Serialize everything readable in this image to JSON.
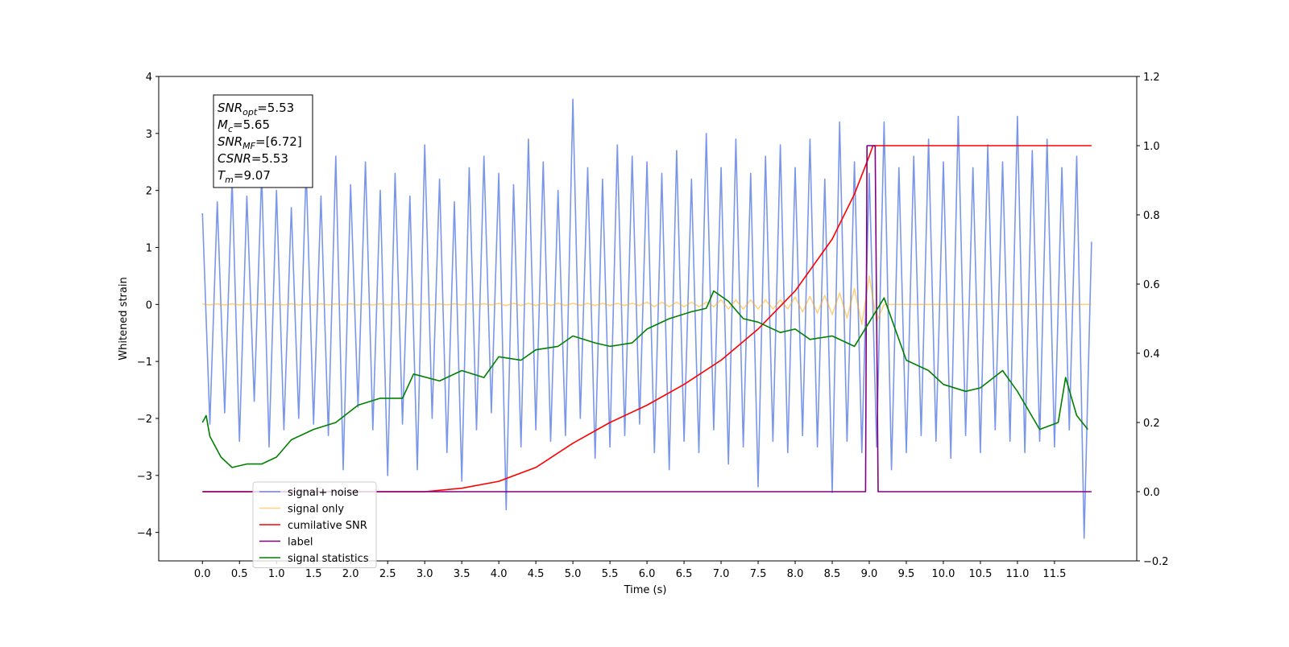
{
  "chart_data": {
    "type": "line",
    "xlabel": "Time (s)",
    "ylabel": "Whitened strain",
    "xlim": [
      -0.59,
      12.61
    ],
    "ylim": [
      -4.5,
      4
    ],
    "y2lim": [
      -0.2,
      1.2
    ],
    "xticks": [
      {
        "value": 0,
        "label": "0.0"
      },
      {
        "value": 0.5,
        "label": "0.5"
      },
      {
        "value": 1,
        "label": "1.0"
      },
      {
        "value": 1.5,
        "label": "1.5"
      },
      {
        "value": 2,
        "label": "2.0"
      },
      {
        "value": 2.5,
        "label": "2.5"
      },
      {
        "value": 3,
        "label": "3.0"
      },
      {
        "value": 3.5,
        "label": "3.5"
      },
      {
        "value": 4,
        "label": "4.0"
      },
      {
        "value": 4.5,
        "label": "4.5"
      },
      {
        "value": 5,
        "label": "5.0"
      },
      {
        "value": 5.5,
        "label": "5.5"
      },
      {
        "value": 6,
        "label": "6.0"
      },
      {
        "value": 6.5,
        "label": "6.5"
      },
      {
        "value": 7,
        "label": "7.0"
      },
      {
        "value": 7.5,
        "label": "7.5"
      },
      {
        "value": 8,
        "label": "8.0"
      },
      {
        "value": 8.5,
        "label": "8.5"
      },
      {
        "value": 9,
        "label": "9.0"
      },
      {
        "value": 9.5,
        "label": "9.5"
      },
      {
        "value": 10,
        "label": "10.0"
      },
      {
        "value": 10.5,
        "label": "10.5"
      },
      {
        "value": 11,
        "label": "11.0"
      },
      {
        "value": 11.5,
        "label": "11.5"
      }
    ],
    "yticks": [
      {
        "value": -4,
        "label": "−4"
      },
      {
        "value": -3,
        "label": "−3"
      },
      {
        "value": -2,
        "label": "−2"
      },
      {
        "value": -1,
        "label": "−1"
      },
      0,
      1,
      2,
      3,
      4
    ],
    "y2ticks": [
      {
        "value": -0.2,
        "label": "−0.2"
      },
      {
        "value": 0,
        "label": "0.0"
      },
      {
        "value": 0.2,
        "label": "0.2"
      },
      {
        "value": 0.4,
        "label": "0.4"
      },
      {
        "value": 0.6,
        "label": "0.6"
      },
      {
        "value": 0.8,
        "label": "0.8"
      },
      {
        "value": 1,
        "label": "1.0"
      },
      {
        "value": 1.2,
        "label": "1.2"
      }
    ],
    "annotation": [
      {
        "main": "SNR",
        "sub": "opt",
        "rest": "=5.53"
      },
      {
        "main": "M",
        "sub": "c",
        "rest": "=5.65"
      },
      {
        "main": "SNR",
        "sub": "MF",
        "rest": "=[6.72]"
      },
      {
        "main": "CSNR",
        "rest": "=5.53"
      },
      {
        "main": "T",
        "sub": "m",
        "rest": "=9.07"
      }
    ],
    "legend": "lower left",
    "x": [
      0.0,
      0.1,
      0.2,
      0.3,
      0.4,
      0.5,
      0.6,
      0.7,
      0.8,
      0.9,
      1.0,
      1.1,
      1.2,
      1.3,
      1.4,
      1.5,
      1.6,
      1.7,
      1.8,
      1.9,
      2.0,
      2.1,
      2.2,
      2.3,
      2.4,
      2.5,
      2.6,
      2.7,
      2.8,
      2.9,
      3.0,
      3.1,
      3.2,
      3.3,
      3.4,
      3.5,
      3.6,
      3.7,
      3.8,
      3.9,
      4.0,
      4.1,
      4.2,
      4.3,
      4.4,
      4.5,
      4.6,
      4.7,
      4.8,
      4.9,
      5.0,
      5.1,
      5.2,
      5.3,
      5.4,
      5.5,
      5.6,
      5.7,
      5.8,
      5.9,
      6.0,
      6.1,
      6.2,
      6.3,
      6.4,
      6.5,
      6.6,
      6.7,
      6.8,
      6.9,
      7.0,
      7.1,
      7.2,
      7.3,
      7.4,
      7.5,
      7.6,
      7.7,
      7.8,
      7.9,
      8.0,
      8.1,
      8.2,
      8.3,
      8.4,
      8.5,
      8.6,
      8.7,
      8.8,
      8.9,
      9.0,
      9.1,
      9.2,
      9.3,
      9.4,
      9.5,
      9.6,
      9.7,
      9.8,
      9.9,
      10.0,
      10.1,
      10.2,
      10.3,
      10.4,
      10.5,
      10.6,
      10.7,
      10.8,
      10.9,
      11.0,
      11.1,
      11.2,
      11.3,
      11.4,
      11.5,
      11.6,
      11.7,
      11.8,
      11.9,
      12.0
    ],
    "series": [
      {
        "name": "signal+ noise",
        "color": "#4169e1",
        "alpha": 0.7,
        "axis": "y",
        "values": [
          1.6,
          -2.1,
          1.8,
          -1.9,
          2.2,
          -2.4,
          1.9,
          -1.7,
          2.3,
          -2.5,
          2.0,
          -2.2,
          1.7,
          -2.0,
          2.4,
          -2.1,
          1.9,
          -2.3,
          2.6,
          -2.9,
          2.1,
          -1.8,
          2.5,
          -2.2,
          2.0,
          -3.0,
          2.3,
          -2.1,
          1.9,
          -2.9,
          2.8,
          -2.0,
          2.2,
          -2.6,
          1.8,
          -3.1,
          2.4,
          -2.2,
          2.6,
          -1.9,
          2.3,
          -3.6,
          2.1,
          -2.5,
          2.9,
          -2.2,
          2.5,
          -2.4,
          2.0,
          -2.3,
          3.6,
          -2.0,
          2.4,
          -2.7,
          2.2,
          -2.5,
          2.8,
          -2.3,
          2.6,
          -2.1,
          2.5,
          -2.6,
          2.3,
          -2.9,
          2.7,
          -2.4,
          2.2,
          -2.6,
          3.0,
          -2.2,
          2.4,
          -2.8,
          2.9,
          -2.5,
          2.3,
          -3.2,
          2.6,
          -2.4,
          2.8,
          -2.6,
          2.4,
          -2.3,
          2.9,
          -2.5,
          2.2,
          -3.3,
          3.2,
          -2.4,
          2.5,
          -2.6,
          2.3,
          -2.5,
          3.2,
          -2.9,
          2.4,
          -2.6,
          2.6,
          -2.3,
          2.9,
          -2.4,
          2.5,
          -2.7,
          3.3,
          -2.3,
          2.4,
          -2.6,
          2.8,
          -2.2,
          2.5,
          -2.4,
          3.3,
          -2.6,
          2.7,
          -2.4,
          2.9,
          -2.5,
          2.4,
          -2.2,
          2.6,
          -4.1,
          1.1
        ]
      },
      {
        "name": "signal only",
        "color": "#ffa500",
        "alpha": 0.5,
        "axis": "y",
        "values": [
          0.01,
          -0.01,
          0.01,
          -0.01,
          0.01,
          -0.01,
          0.01,
          -0.01,
          0.01,
          -0.01,
          0.01,
          -0.01,
          0.01,
          -0.01,
          0.01,
          -0.01,
          0.01,
          -0.01,
          0.01,
          -0.01,
          0.01,
          -0.01,
          0.01,
          -0.01,
          0.01,
          -0.01,
          0.01,
          -0.01,
          0.01,
          -0.01,
          0.01,
          -0.01,
          0.01,
          -0.01,
          0.01,
          -0.01,
          0.01,
          -0.01,
          0.01,
          -0.01,
          0.02,
          -0.02,
          0.02,
          -0.02,
          0.02,
          -0.02,
          0.02,
          -0.02,
          0.02,
          -0.02,
          0.02,
          -0.02,
          0.02,
          -0.02,
          0.02,
          -0.02,
          0.02,
          -0.02,
          0.02,
          -0.02,
          0.04,
          -0.04,
          0.04,
          -0.04,
          0.04,
          -0.04,
          0.04,
          -0.04,
          0.04,
          -0.04,
          0.08,
          -0.08,
          0.08,
          -0.08,
          0.08,
          -0.08,
          0.08,
          -0.08,
          0.08,
          -0.08,
          0.13,
          -0.13,
          0.14,
          -0.15,
          0.16,
          -0.18,
          0.2,
          -0.24,
          0.28,
          -0.35,
          0.5,
          -0.3,
          0,
          0,
          0,
          0,
          0,
          0,
          0,
          0,
          0,
          0,
          0,
          0,
          0,
          0,
          0,
          0,
          0,
          0,
          0,
          0,
          0,
          0,
          0,
          0,
          0,
          0,
          0,
          0,
          0
        ]
      },
      {
        "name": "cumilative SNR",
        "color": "#ff0000",
        "axis": "y2",
        "x": [
          0,
          3.0,
          3.5,
          4.0,
          4.5,
          5.0,
          5.5,
          6.0,
          6.5,
          7.0,
          7.5,
          8.0,
          8.5,
          8.8,
          9.0,
          9.05,
          12.0
        ],
        "values": [
          0,
          0,
          0.01,
          0.03,
          0.07,
          0.14,
          0.2,
          0.25,
          0.31,
          0.38,
          0.47,
          0.58,
          0.73,
          0.86,
          0.97,
          1.0,
          1.0
        ]
      },
      {
        "name": "label",
        "color": "#800080",
        "axis": "y2",
        "x": [
          0,
          8.95,
          8.97,
          9.08,
          9.12,
          12.0
        ],
        "values": [
          0,
          0,
          1,
          1,
          0,
          0
        ]
      },
      {
        "name": "signal statistics",
        "color": "#008000",
        "axis": "y2",
        "x": [
          0,
          0.05,
          0.1,
          0.25,
          0.4,
          0.6,
          0.8,
          1.0,
          1.2,
          1.5,
          1.8,
          2.1,
          2.4,
          2.7,
          2.85,
          3.2,
          3.5,
          3.8,
          4.0,
          4.3,
          4.5,
          4.8,
          5.0,
          5.3,
          5.5,
          5.8,
          6.0,
          6.3,
          6.6,
          6.8,
          6.9,
          7.1,
          7.3,
          7.5,
          7.8,
          8.0,
          8.2,
          8.5,
          8.8,
          9.0,
          9.2,
          9.5,
          9.8,
          10.0,
          10.3,
          10.5,
          10.8,
          11.0,
          11.3,
          11.55,
          11.65,
          11.8,
          11.95
        ],
        "values": [
          0.2,
          0.22,
          0.16,
          0.1,
          0.07,
          0.08,
          0.08,
          0.1,
          0.15,
          0.18,
          0.2,
          0.25,
          0.27,
          0.27,
          0.34,
          0.32,
          0.35,
          0.33,
          0.39,
          0.38,
          0.41,
          0.42,
          0.45,
          0.43,
          0.42,
          0.43,
          0.47,
          0.5,
          0.52,
          0.53,
          0.58,
          0.55,
          0.5,
          0.49,
          0.46,
          0.47,
          0.44,
          0.45,
          0.42,
          0.49,
          0.56,
          0.38,
          0.35,
          0.31,
          0.29,
          0.3,
          0.35,
          0.29,
          0.18,
          0.2,
          0.33,
          0.22,
          0.18
        ]
      }
    ]
  }
}
